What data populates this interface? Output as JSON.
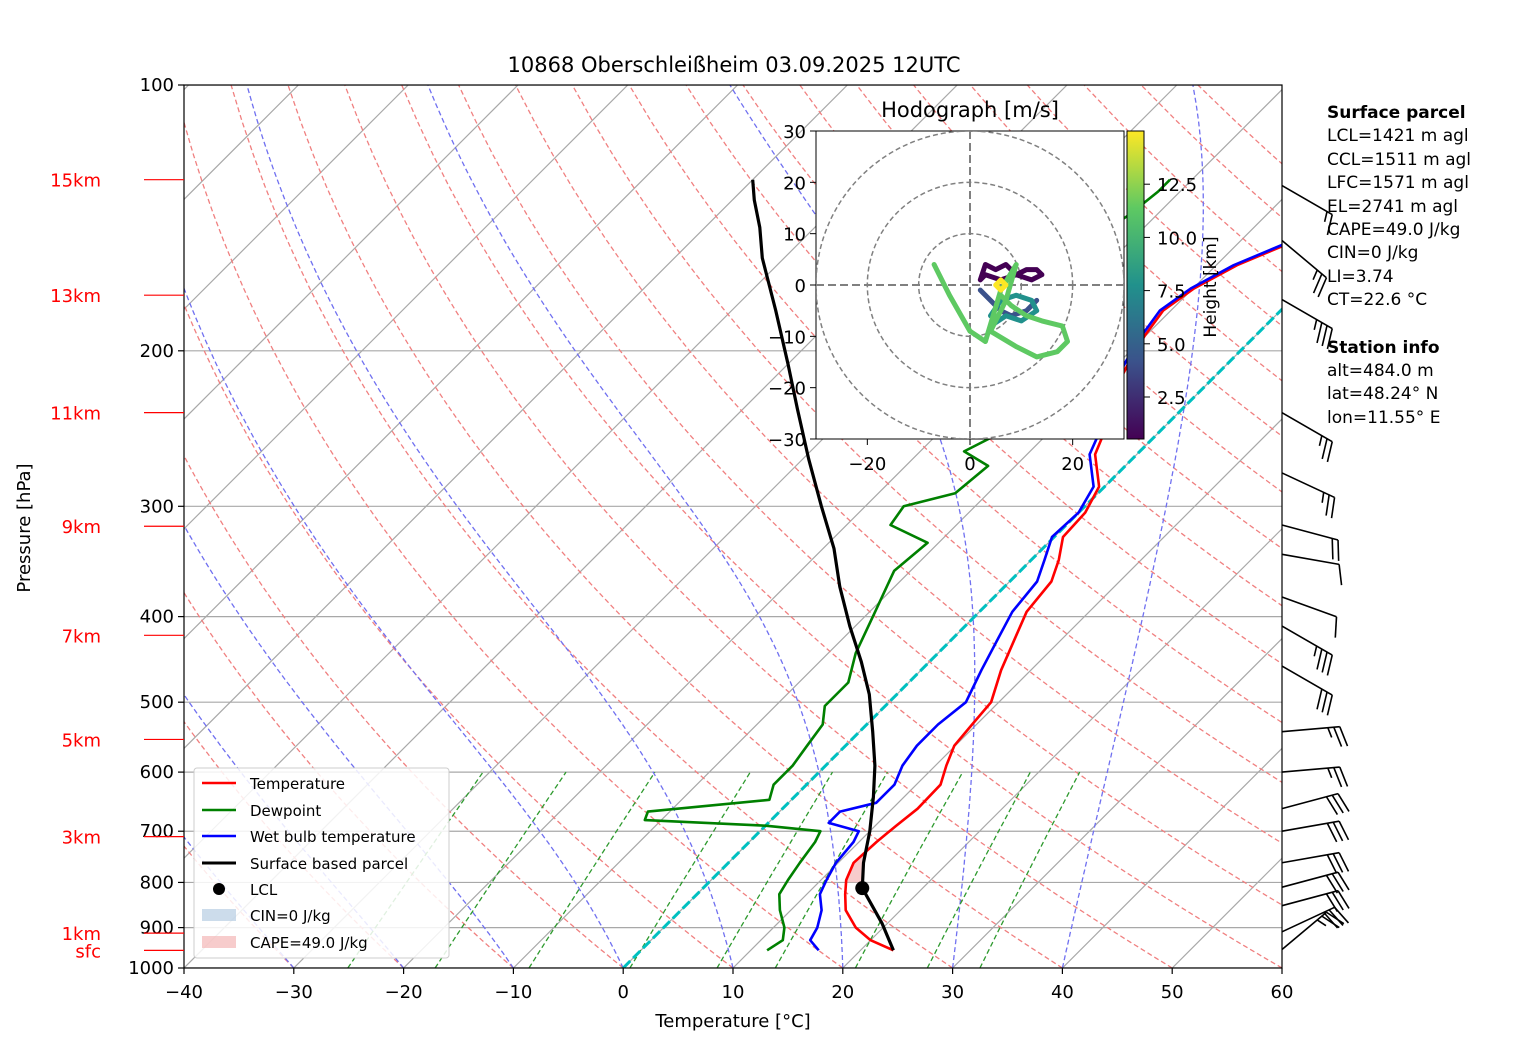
{
  "chart_data": {
    "type": "line",
    "title": "10868 Oberschleißheim 03.09.2025 12UTC",
    "xlabel": "Temperature [°C]",
    "ylabel": "Pressure [hPa]",
    "xlim": [
      -40,
      60
    ],
    "ylim": [
      1000,
      100
    ],
    "y_scale": "log",
    "skew": "skew-T (isotherms skewed 45°)",
    "grid": true,
    "x_ticks": [
      "−40",
      "−30",
      "−20",
      "−10",
      "0",
      "10",
      "20",
      "30",
      "40",
      "50",
      "60"
    ],
    "y_ticks": [
      100,
      200,
      300,
      400,
      500,
      600,
      700,
      800,
      900,
      1000
    ],
    "height_labels": [
      {
        "label": "sfc",
        "pressure": 955
      },
      {
        "label": "1km",
        "pressure": 913
      },
      {
        "label": "3km",
        "pressure": 710
      },
      {
        "label": "5km",
        "pressure": 551
      },
      {
        "label": "7km",
        "pressure": 420
      },
      {
        "label": "9km",
        "pressure": 316
      },
      {
        "label": "11km",
        "pressure": 235
      },
      {
        "label": "13km",
        "pressure": 173
      },
      {
        "label": "15km",
        "pressure": 128
      }
    ],
    "series": [
      {
        "name": "Temperature",
        "color": "#ff0000",
        "points": [
          [
            23.0,
            955
          ],
          [
            20.0,
            930
          ],
          [
            17.5,
            900
          ],
          [
            15.0,
            860
          ],
          [
            13.5,
            825
          ],
          [
            12.3,
            795
          ],
          [
            11.4,
            760
          ],
          [
            11.6,
            720
          ],
          [
            11.9,
            690
          ],
          [
            12.3,
            660
          ],
          [
            12.2,
            620
          ],
          [
            11.0,
            590
          ],
          [
            9.9,
            560
          ],
          [
            9.6,
            530
          ],
          [
            9.3,
            500
          ],
          [
            7.3,
            460
          ],
          [
            5.5,
            420
          ],
          [
            4.3,
            395
          ],
          [
            3.8,
            365
          ],
          [
            2.5,
            345
          ],
          [
            0.8,
            325
          ],
          [
            0.6,
            305
          ],
          [
            -0.5,
            285
          ],
          [
            -3.8,
            262
          ],
          [
            -5.6,
            240
          ],
          [
            -7.8,
            222
          ],
          [
            -9.2,
            205
          ],
          [
            -10.1,
            192
          ],
          [
            -10.7,
            180
          ],
          [
            -9.9,
            170
          ],
          [
            -8.1,
            160
          ],
          [
            -5.0,
            150
          ],
          [
            -3.5,
            142
          ],
          [
            -1.5,
            135
          ],
          [
            0.0,
            130
          ],
          [
            2.0,
            128
          ]
        ]
      },
      {
        "name": "Dewpoint",
        "color": "#008000",
        "points": [
          [
            11.5,
            955
          ],
          [
            12.0,
            930
          ],
          [
            11.0,
            900
          ],
          [
            9.0,
            860
          ],
          [
            7.5,
            825
          ],
          [
            7.0,
            795
          ],
          [
            6.5,
            760
          ],
          [
            6.0,
            720
          ],
          [
            5.5,
            700
          ],
          [
            0.0,
            690
          ],
          [
            -11.5,
            680
          ],
          [
            -12.0,
            665
          ],
          [
            -2.0,
            645
          ],
          [
            -3.0,
            620
          ],
          [
            -3.0,
            590
          ],
          [
            -3.5,
            560
          ],
          [
            -4.0,
            530
          ],
          [
            -5.5,
            505
          ],
          [
            -5.5,
            475
          ],
          [
            -7.5,
            440
          ],
          [
            -9.5,
            395
          ],
          [
            -11.5,
            355
          ],
          [
            -11.0,
            330
          ],
          [
            -16.0,
            315
          ],
          [
            -16.5,
            300
          ],
          [
            -13.0,
            290
          ],
          [
            -12.5,
            270
          ],
          [
            -16.0,
            260
          ],
          [
            -14.0,
            245
          ],
          [
            -15.0,
            230
          ],
          [
            -15.0,
            215
          ],
          [
            -14.5,
            200
          ],
          [
            -17.0,
            190
          ],
          [
            -16.5,
            180
          ],
          [
            -18.5,
            170
          ],
          [
            -23.5,
            162
          ],
          [
            -23.5,
            150
          ],
          [
            -22.5,
            140
          ],
          [
            -22.0,
            132
          ],
          [
            -22.0,
            128
          ]
        ]
      },
      {
        "name": "Wet bulb temperature",
        "color": "#0000ff",
        "points": [
          [
            16.2,
            955
          ],
          [
            14.5,
            930
          ],
          [
            14.0,
            900
          ],
          [
            12.8,
            860
          ],
          [
            11.2,
            825
          ],
          [
            10.5,
            795
          ],
          [
            9.8,
            760
          ],
          [
            9.5,
            720
          ],
          [
            9.0,
            700
          ],
          [
            5.5,
            685
          ],
          [
            5.5,
            665
          ],
          [
            8.0,
            650
          ],
          [
            8.0,
            620
          ],
          [
            7.0,
            590
          ],
          [
            6.5,
            560
          ],
          [
            6.5,
            530
          ],
          [
            7.0,
            500
          ],
          [
            5.5,
            460
          ],
          [
            4.0,
            420
          ],
          [
            3.0,
            395
          ],
          [
            2.5,
            365
          ],
          [
            1.2,
            345
          ],
          [
            -0.2,
            325
          ],
          [
            0.0,
            305
          ],
          [
            -1.0,
            285
          ],
          [
            -4.3,
            262
          ],
          [
            -6.0,
            240
          ],
          [
            -8.2,
            222
          ],
          [
            -9.5,
            205
          ],
          [
            -10.4,
            192
          ],
          [
            -11.0,
            180
          ],
          [
            -10.2,
            170
          ],
          [
            -8.4,
            160
          ],
          [
            -5.3,
            150
          ],
          [
            -3.7,
            142
          ],
          [
            -1.7,
            135
          ],
          [
            0.0,
            130
          ],
          [
            2.0,
            128
          ]
        ]
      },
      {
        "name": "Surface based parcel",
        "color": "#000000",
        "points": [
          [
            23.0,
            955
          ],
          [
            19.5,
            890
          ],
          [
            14.5,
            812
          ],
          [
            12.3,
            760
          ],
          [
            10.0,
            700
          ],
          [
            7.2,
            640
          ],
          [
            4.5,
            590
          ],
          [
            1.2,
            540
          ],
          [
            -2.5,
            490
          ],
          [
            -6.2,
            450
          ],
          [
            -10.5,
            410
          ],
          [
            -15.0,
            370
          ],
          [
            -19.0,
            335
          ],
          [
            -24.0,
            300
          ],
          [
            -29.5,
            265
          ],
          [
            -35.0,
            233
          ],
          [
            -40.0,
            207
          ],
          [
            -46.0,
            180
          ],
          [
            -52.0,
            157
          ],
          [
            -55.0,
            145
          ],
          [
            -58.0,
            135
          ],
          [
            -60.0,
            128
          ]
        ]
      }
    ],
    "lcl": {
      "label": "LCL",
      "temperature": 14.5,
      "pressure": 812
    },
    "legend": [
      "Temperature",
      "Dewpoint",
      "Wet bulb temperature",
      "Surface based parcel",
      "LCL",
      "CIN=0 J/kg",
      "CAPE=49.0 J/kg"
    ],
    "legend_position": "lower-left",
    "hodograph": {
      "title": "Hodograph [m/s]",
      "xlim": [
        -30,
        30
      ],
      "ylim": [
        -30,
        30
      ],
      "x_ticks": [
        "−20",
        "0",
        "20"
      ],
      "y_ticks": [
        "−30",
        "−20",
        "−10",
        "0",
        "10",
        "20",
        "30"
      ],
      "rings": [
        10,
        20,
        30
      ],
      "colorbar_label": "Height [km]",
      "colorbar_ticks": [
        "2.5",
        "5.0",
        "7.5",
        "10.0",
        "12.5"
      ],
      "colormap": [
        "#440154",
        "#3b528b",
        "#21918c",
        "#5ec962",
        "#fde725"
      ],
      "segments": [
        {
          "color": "#440154",
          "points": [
            [
              2,
              1
            ],
            [
              3,
              4
            ],
            [
              5,
              3
            ],
            [
              7,
              4
            ],
            [
              9,
              2
            ],
            [
              11,
              3
            ],
            [
              13,
              3
            ],
            [
              14,
              2
            ],
            [
              12,
              1
            ],
            [
              9,
              2
            ],
            [
              6,
              1
            ],
            [
              3,
              2
            ],
            [
              2,
              1
            ]
          ]
        },
        {
          "color": "#3b528b",
          "points": [
            [
              2,
              -1
            ],
            [
              4,
              -3
            ],
            [
              6,
              -5
            ],
            [
              8,
              -6
            ],
            [
              11,
              -5
            ],
            [
              13,
              -3
            ]
          ]
        },
        {
          "color": "#21918c",
          "points": [
            [
              4,
              -8
            ],
            [
              7,
              -6
            ],
            [
              10,
              -7
            ],
            [
              13,
              -5
            ],
            [
              12,
              -3
            ],
            [
              9,
              -2
            ],
            [
              6,
              -3
            ],
            [
              4,
              -6
            ]
          ]
        },
        {
          "color": "#5ec962",
          "points": [
            [
              -7,
              4
            ],
            [
              -4,
              -2
            ],
            [
              0,
              -9
            ],
            [
              3,
              -11
            ],
            [
              6,
              -1
            ],
            [
              9,
              4
            ],
            [
              7,
              -3
            ],
            [
              4,
              -9
            ],
            [
              9,
              -12
            ],
            [
              13,
              -14
            ],
            [
              17,
              -13
            ],
            [
              19,
              -11
            ],
            [
              18,
              -8
            ],
            [
              14,
              -7
            ],
            [
              11,
              -6
            ],
            [
              8,
              -4
            ],
            [
              6,
              -2
            ]
          ]
        },
        {
          "color": "#fde725",
          "points": [
            [
              5,
              0
            ],
            [
              6,
              1
            ],
            [
              7,
              0
            ],
            [
              6,
              -1
            ],
            [
              5,
              0
            ]
          ]
        }
      ]
    },
    "wind_barbs": [
      {
        "pressure": 953,
        "direction": 230,
        "speed": 25
      },
      {
        "pressure": 910,
        "direction": 245,
        "speed": 30
      },
      {
        "pressure": 850,
        "direction": 255,
        "speed": 30
      },
      {
        "pressure": 810,
        "direction": 255,
        "speed": 30
      },
      {
        "pressure": 760,
        "direction": 260,
        "speed": 30
      },
      {
        "pressure": 700,
        "direction": 260,
        "speed": 30
      },
      {
        "pressure": 660,
        "direction": 255,
        "speed": 30
      },
      {
        "pressure": 600,
        "direction": 265,
        "speed": 25
      },
      {
        "pressure": 540,
        "direction": 265,
        "speed": 25
      },
      {
        "pressure": 455,
        "direction": 300,
        "speed": 30
      },
      {
        "pressure": 410,
        "direction": 300,
        "speed": 35
      },
      {
        "pressure": 380,
        "direction": 290,
        "speed": 10
      },
      {
        "pressure": 340,
        "direction": 280,
        "speed": 10
      },
      {
        "pressure": 315,
        "direction": 285,
        "speed": 20
      },
      {
        "pressure": 275,
        "direction": 295,
        "speed": 25
      },
      {
        "pressure": 235,
        "direction": 300,
        "speed": 25
      },
      {
        "pressure": 175,
        "direction": 300,
        "speed": 35
      },
      {
        "pressure": 150,
        "direction": 310,
        "speed": 25
      },
      {
        "pressure": 130,
        "direction": 300,
        "speed": 15
      }
    ],
    "cape_fill": {
      "label": "CAPE=49.0 J/kg",
      "color": "#f4b6b6"
    },
    "cin_fill": {
      "label": "CIN=0 J/kg",
      "color": "#b6cde2"
    }
  },
  "surface_parcel": {
    "heading": "Surface parcel",
    "lines": [
      "LCL=1421 m agl",
      "CCL=1511 m agl",
      "LFC=1571 m agl",
      "EL=2741 m agl",
      "CAPE=49.0 J/kg",
      "CIN=0 J/kg",
      "LI=3.74",
      "CT=22.6 °C"
    ]
  },
  "station_info": {
    "heading": "Station info",
    "lines": [
      "alt=484.0 m",
      "lat=48.24° N",
      "lon=11.55° E"
    ]
  },
  "colors": {
    "temperature": "#ff0000",
    "dewpoint": "#008000",
    "wetbulb": "#0000ff",
    "parcel": "#000000",
    "freezing_line": "#00c0c0",
    "dry_adiabat": "#f08080",
    "moist_adiabat": "#7070f0",
    "mixing_ratio": "#2e9a2e",
    "isotherm": "#a8a8a8",
    "height_label": "#ff0000"
  }
}
